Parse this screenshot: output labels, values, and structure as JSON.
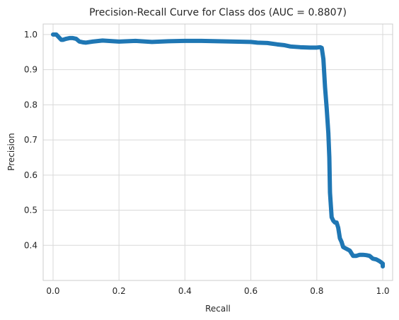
{
  "chart_data": {
    "type": "line",
    "title": "Precision-Recall Curve for Class dos (AUC = 0.8807)",
    "xlabel": "Recall",
    "ylabel": "Precision",
    "xlim": [
      -0.03,
      1.03
    ],
    "ylim": [
      0.3,
      1.03
    ],
    "xticks": [
      0.0,
      0.2,
      0.4,
      0.6,
      0.8,
      1.0
    ],
    "xtick_labels": [
      "0.0",
      "0.2",
      "0.4",
      "0.6",
      "0.8",
      "1.0"
    ],
    "yticks": [
      0.4,
      0.5,
      0.6,
      0.7,
      0.8,
      0.9,
      1.0
    ],
    "ytick_labels": [
      "0.4",
      "0.5",
      "0.6",
      "0.7",
      "0.8",
      "0.9",
      "1.0"
    ],
    "grid": true,
    "series": [
      {
        "color": "#1f77b4",
        "x": [
          0.0,
          0.01,
          0.015,
          0.02,
          0.025,
          0.03,
          0.04,
          0.05,
          0.06,
          0.07,
          0.08,
          0.09,
          0.1,
          0.12,
          0.15,
          0.2,
          0.25,
          0.3,
          0.35,
          0.4,
          0.45,
          0.5,
          0.55,
          0.6,
          0.62,
          0.65,
          0.68,
          0.7,
          0.72,
          0.75,
          0.78,
          0.8,
          0.81,
          0.815,
          0.82,
          0.825,
          0.83,
          0.835,
          0.838,
          0.84,
          0.845,
          0.85,
          0.855,
          0.86,
          0.865,
          0.87,
          0.875,
          0.88,
          0.89,
          0.9,
          0.91,
          0.92,
          0.93,
          0.94,
          0.95,
          0.96,
          0.97,
          0.98,
          0.99,
          1.0,
          1.0
        ],
        "y": [
          1.0,
          1.0,
          0.995,
          0.99,
          0.985,
          0.985,
          0.988,
          0.99,
          0.99,
          0.988,
          0.98,
          0.978,
          0.977,
          0.98,
          0.983,
          0.98,
          0.982,
          0.979,
          0.981,
          0.982,
          0.982,
          0.981,
          0.98,
          0.979,
          0.977,
          0.976,
          0.972,
          0.97,
          0.966,
          0.964,
          0.963,
          0.963,
          0.964,
          0.962,
          0.93,
          0.85,
          0.79,
          0.72,
          0.65,
          0.55,
          0.48,
          0.47,
          0.465,
          0.465,
          0.45,
          0.42,
          0.41,
          0.395,
          0.39,
          0.385,
          0.37,
          0.37,
          0.373,
          0.373,
          0.372,
          0.37,
          0.362,
          0.36,
          0.355,
          0.348,
          0.34
        ]
      }
    ]
  }
}
